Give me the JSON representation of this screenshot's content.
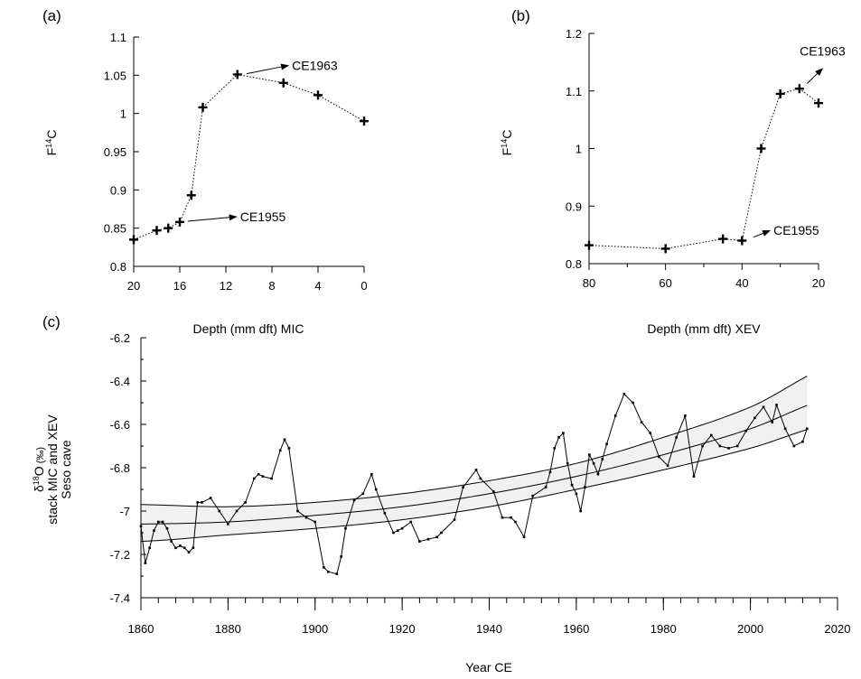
{
  "chart_data": [
    {
      "id": "a",
      "type": "scatter",
      "panel_label": "(a)",
      "xlabel": "Depth (mm dft) MIC",
      "ylabel_main": "F",
      "ylabel_sup": "14",
      "ylabel_tail": "C",
      "xlim": [
        20,
        0
      ],
      "ylim": [
        0.8,
        1.1
      ],
      "x_ticks": [
        20,
        16,
        12,
        8,
        4,
        0
      ],
      "y_ticks": [
        0.8,
        0.85,
        0.9,
        0.95,
        1,
        1.05,
        1.1
      ],
      "x_tick_labels": [
        "20",
        "16",
        "12",
        "8",
        "4",
        "0"
      ],
      "y_tick_labels": [
        "0.8",
        "0.85",
        "0.9",
        "0.95",
        "1",
        "1.05",
        "1.1"
      ],
      "series": [
        {
          "x": [
            20,
            18,
            17,
            16,
            15,
            14,
            11,
            7,
            4,
            0
          ],
          "y": [
            0.835,
            0.847,
            0.85,
            0.858,
            0.893,
            1.008,
            1.051,
            1.04,
            1.024,
            0.99
          ]
        }
      ],
      "annotations": [
        {
          "text": "CE1963",
          "from": [
            10.2,
            1.052
          ],
          "to": [
            6.5,
            1.063
          ]
        },
        {
          "text": "CE1955",
          "from": [
            15.3,
            0.859
          ],
          "to": [
            11.0,
            0.865
          ]
        }
      ]
    },
    {
      "id": "b",
      "type": "scatter",
      "panel_label": "(b)",
      "xlabel": "Depth (mm dft) XEV",
      "ylabel_main": "F",
      "ylabel_sup": "14",
      "ylabel_tail": "C",
      "xlim": [
        80,
        20
      ],
      "ylim": [
        0.8,
        1.2
      ],
      "x_ticks": [
        80,
        60,
        40,
        20
      ],
      "x_minor_ticks": [
        70,
        50,
        30
      ],
      "y_ticks": [
        0.8,
        0.9,
        1,
        1.1,
        1.2
      ],
      "x_tick_labels": [
        "80",
        "60",
        "40",
        "20"
      ],
      "y_tick_labels": [
        "0.8",
        "0.9",
        "1",
        "1.1",
        "1.2"
      ],
      "series": [
        {
          "x": [
            80,
            60,
            45,
            40,
            35,
            30,
            25,
            20
          ],
          "y": [
            0.832,
            0.826,
            0.843,
            0.84,
            1.0,
            1.095,
            1.104,
            1.079
          ]
        }
      ],
      "annotations": [
        {
          "text": "CE1963",
          "from": [
            23.0,
            1.113
          ],
          "to": [
            18.8,
            1.14
          ]
        },
        {
          "text": "CE1955",
          "from": [
            37.0,
            0.846
          ],
          "to": [
            32.5,
            0.858
          ]
        }
      ]
    },
    {
      "id": "c",
      "type": "line",
      "panel_label": "(c)",
      "xlabel": "Year CE",
      "ylabel_lines": [
        "δ18O (‰)",
        "stack MIC and XEV",
        "Seso cave"
      ],
      "ylabel_delta": "δ",
      "ylabel_sup": "18",
      "ylabel_o": "O",
      "ylabel_unit": " (‰)",
      "ylabel_line2": "stack MIC and XEV",
      "ylabel_line3": "Seso cave",
      "xlim": [
        1860,
        2020
      ],
      "ylim": [
        -7.4,
        -6.2
      ],
      "x_ticks": [
        1860,
        1880,
        1900,
        1920,
        1940,
        1960,
        1980,
        2000,
        2020
      ],
      "x_tick_labels": [
        "1860",
        "1880",
        "1900",
        "1920",
        "1940",
        "1960",
        "1980",
        "2000",
        "2020"
      ],
      "y_ticks": [
        -7.4,
        -7.2,
        -7.0,
        -6.8,
        -6.6,
        -6.4,
        -6.2
      ],
      "y_tick_labels": [
        "-7.4",
        "-7.2",
        "-7",
        "-6.8",
        "-6.6",
        "-6.4",
        "-6.2"
      ],
      "series": [
        {
          "x": [
            1860,
            1861,
            1862,
            1863,
            1864,
            1865,
            1866,
            1867,
            1868,
            1869,
            1870,
            1871,
            1872,
            1873,
            1874,
            1876,
            1878,
            1880,
            1882,
            1884,
            1886,
            1887,
            1888,
            1890,
            1892,
            1893,
            1894,
            1896,
            1898,
            1900,
            1902,
            1903,
            1905,
            1906,
            1907,
            1909,
            1911,
            1913,
            1914,
            1916,
            1918,
            1919,
            1920,
            1922,
            1924,
            1926,
            1928,
            1929,
            1932,
            1934,
            1937,
            1938,
            1941,
            1943,
            1945,
            1946,
            1948,
            1950,
            1953,
            1954,
            1955,
            1956,
            1957,
            1958,
            1959,
            1960,
            1961,
            1962,
            1963,
            1964,
            1965,
            1966,
            1967,
            1969,
            1971,
            1973,
            1975,
            1977,
            1979,
            1981,
            1983,
            1985,
            1987,
            1989,
            1991,
            1993,
            1995,
            1997,
            1999,
            2001,
            2003,
            2005,
            2006,
            2008,
            2010,
            2012,
            2013
          ],
          "y": [
            -7.07,
            -7.24,
            -7.17,
            -7.09,
            -7.05,
            -7.05,
            -7.08,
            -7.14,
            -7.17,
            -7.16,
            -7.17,
            -7.19,
            -7.17,
            -6.96,
            -6.96,
            -6.94,
            -7.0,
            -7.06,
            -7.0,
            -6.96,
            -6.85,
            -6.83,
            -6.84,
            -6.85,
            -6.72,
            -6.67,
            -6.71,
            -7.0,
            -7.03,
            -7.05,
            -7.26,
            -7.28,
            -7.29,
            -7.21,
            -7.08,
            -6.95,
            -6.92,
            -6.83,
            -6.9,
            -7.01,
            -7.1,
            -7.09,
            -7.08,
            -7.05,
            -7.14,
            -7.13,
            -7.12,
            -7.1,
            -7.04,
            -6.89,
            -6.81,
            -6.85,
            -6.91,
            -7.03,
            -7.03,
            -7.05,
            -7.12,
            -6.93,
            -6.89,
            -6.82,
            -6.71,
            -6.66,
            -6.64,
            -6.78,
            -6.88,
            -6.92,
            -7.0,
            -6.89,
            -6.74,
            -6.78,
            -6.83,
            -6.76,
            -6.69,
            -6.56,
            -6.46,
            -6.5,
            -6.59,
            -6.64,
            -6.75,
            -6.79,
            -6.66,
            -6.56,
            -6.84,
            -6.7,
            -6.65,
            -6.7,
            -6.71,
            -6.7,
            -6.63,
            -6.57,
            -6.52,
            -6.59,
            -6.51,
            -6.62,
            -6.7,
            -6.68,
            -6.62
          ]
        }
      ],
      "trend_lines": [
        {
          "role": "upper",
          "x": [
            1860,
            1880,
            1900,
            1920,
            1940,
            1960,
            1980,
            2000,
            2020
          ],
          "y": [
            -6.97,
            -6.98,
            -6.96,
            -6.92,
            -6.86,
            -6.78,
            -6.66,
            -6.52,
            -6.32
          ]
        },
        {
          "role": "middle",
          "x": [
            1860,
            1880,
            1900,
            1920,
            1940,
            1960,
            1980,
            2000,
            2020
          ],
          "y": [
            -7.06,
            -7.05,
            -7.02,
            -6.98,
            -6.92,
            -6.84,
            -6.74,
            -6.62,
            -6.47
          ]
        },
        {
          "role": "lower",
          "x": [
            1860,
            1880,
            1900,
            1920,
            1940,
            1960,
            1980,
            2000,
            2020
          ],
          "y": [
            -7.14,
            -7.11,
            -7.08,
            -7.04,
            -6.98,
            -6.9,
            -6.81,
            -6.71,
            -6.59
          ]
        }
      ]
    }
  ]
}
